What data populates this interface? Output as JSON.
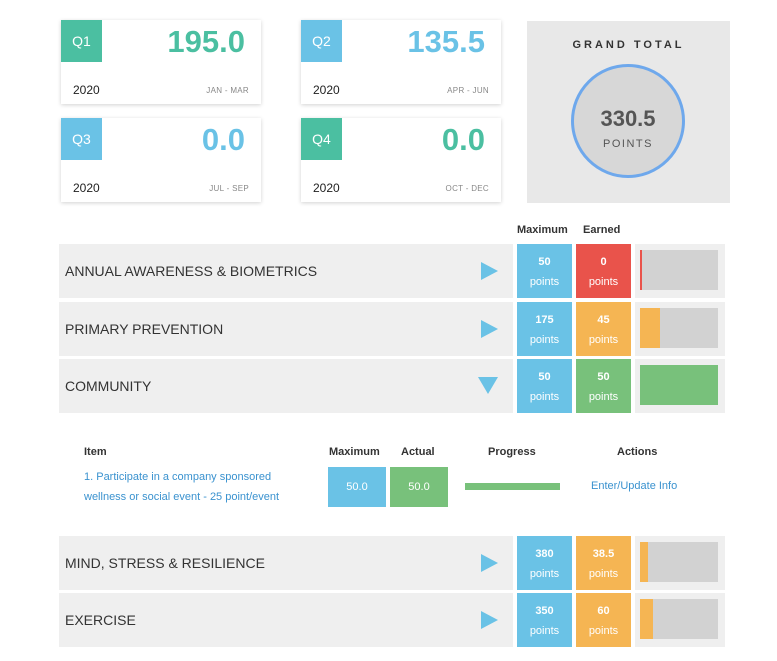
{
  "quarters": [
    {
      "label": "Q1",
      "value": "195.0",
      "year": "2020",
      "range": "JAN - MAR"
    },
    {
      "label": "Q2",
      "value": "135.5",
      "year": "2020",
      "range": "APR - JUN"
    },
    {
      "label": "Q3",
      "value": "0.0",
      "year": "2020",
      "range": "JUL - SEP"
    },
    {
      "label": "Q4",
      "value": "0.0",
      "year": "2020",
      "range": "OCT - DEC"
    }
  ],
  "grand_total": {
    "label": "GRAND TOTAL",
    "value": "330.5",
    "unit": "POINTS"
  },
  "columns": {
    "maximum": "Maximum",
    "earned": "Earned"
  },
  "categories": [
    {
      "name": "ANNUAL AWARENESS & BIOMETRICS",
      "max": "50",
      "earned": "0",
      "unit": "points",
      "progress": 0,
      "status_color": "#e9534b",
      "expanded": false
    },
    {
      "name": "PRIMARY PREVENTION",
      "max": "175",
      "earned": "45",
      "unit": "points",
      "progress": 0.257,
      "status_color": "#f5b553",
      "expanded": false
    },
    {
      "name": "COMMUNITY",
      "max": "50",
      "earned": "50",
      "unit": "points",
      "progress": 1.0,
      "status_color": "#78c17b",
      "expanded": true
    },
    {
      "name": "MIND, STRESS & RESILIENCE",
      "max": "380",
      "earned": "38.5",
      "unit": "points",
      "progress": 0.101,
      "status_color": "#f5b553",
      "expanded": false
    },
    {
      "name": "EXERCISE",
      "max": "350",
      "earned": "60",
      "unit": "points",
      "progress": 0.171,
      "status_color": "#f5b553",
      "expanded": false
    }
  ],
  "detail": {
    "headers": {
      "item": "Item",
      "maximum": "Maximum",
      "actual": "Actual",
      "progress": "Progress",
      "actions": "Actions"
    },
    "items": [
      {
        "text": "1. Participate in a company sponsored wellness or social event - 25 point/event",
        "maximum": "50.0",
        "actual": "50.0",
        "progress": 1.0,
        "action": "Enter/Update Info"
      }
    ]
  },
  "colors": {
    "teal": "#4bbfa1",
    "blue": "#6ac2e6",
    "red": "#e9534b",
    "orange": "#f5b553",
    "green": "#78c17b",
    "ring": "#6ea8ec"
  },
  "icons": {
    "collapsed": "play-arrow-right-icon",
    "expanded": "arrow-down-icon"
  }
}
